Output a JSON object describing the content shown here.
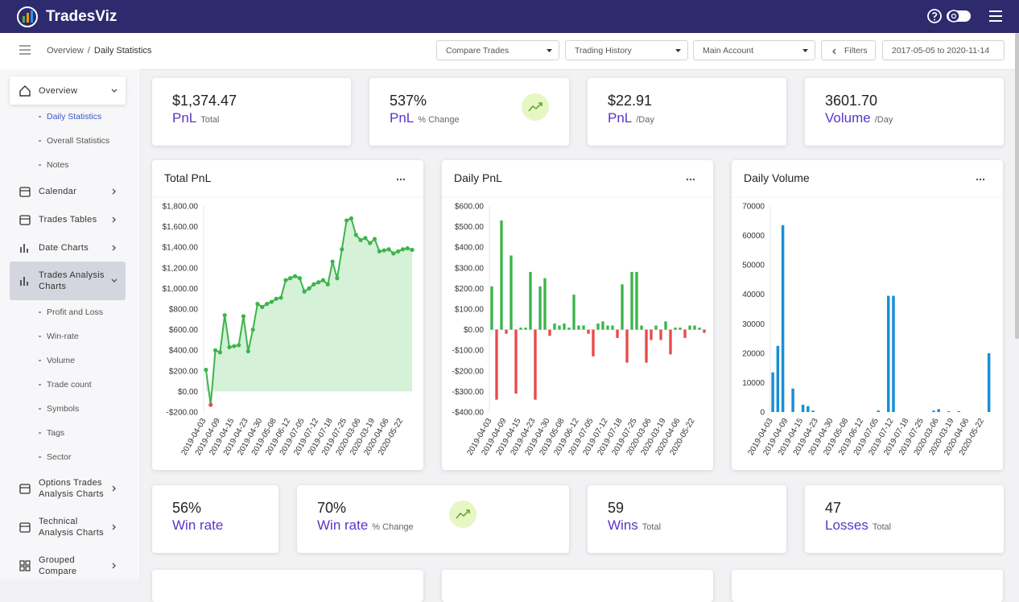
{
  "header": {
    "brand": "TradesViz"
  },
  "breadcrumb": {
    "items": [
      "Overview",
      "Daily Statistics"
    ],
    "separator": "/"
  },
  "toolbar": {
    "selects": [
      "Compare Trades",
      "Trading History",
      "Main Account"
    ],
    "filters": "Filters",
    "date_range": "2017-05-05 to 2020-11-14"
  },
  "sidebar": [
    {
      "label": "Overview",
      "children": [
        "Daily Statistics",
        "Overall Statistics",
        "Notes"
      ]
    },
    {
      "label": "Calendar"
    },
    {
      "label": "Trades Tables"
    },
    {
      "label": "Date Charts"
    },
    {
      "label": "Trades Analysis Charts",
      "children": [
        "Profit and Loss",
        "Win-rate",
        "Volume",
        "Trade count",
        "Symbols",
        "Tags",
        "Sector"
      ]
    },
    {
      "label": "Options Trades Analysis Charts"
    },
    {
      "label": "Technical Analysis Charts"
    },
    {
      "label": "Grouped Compare"
    }
  ],
  "stats_top": [
    {
      "value": "$1,374.47",
      "label": "PnL",
      "sub": "Total"
    },
    {
      "value": "537%",
      "label": "PnL",
      "sub": "% Change"
    },
    {
      "value": "$22.91",
      "label": "PnL",
      "sub": "/Day"
    },
    {
      "value": "3601.70",
      "label": "Volume",
      "sub": "/Day"
    }
  ],
  "stats_bottom": [
    {
      "value": "56%",
      "label": "Win rate"
    },
    {
      "value": "70%",
      "label": "Win rate",
      "sub": "% Change"
    },
    {
      "value": "59",
      "label": "Wins",
      "sub": "Total"
    },
    {
      "value": "47",
      "label": "Losses",
      "sub": "Total"
    }
  ],
  "chart_data": [
    {
      "type": "area",
      "title": "Total PnL",
      "color": "#3cb44b",
      "fill_color": "#d5f1d8",
      "negative_color": "#e84a4a",
      "categories": [
        "2019-04-03",
        null,
        null,
        "2019-04-09",
        null,
        null,
        "2019-04-15",
        null,
        null,
        "2019-04-23",
        null,
        null,
        "2019-04-30",
        null,
        null,
        "2019-05-08",
        null,
        null,
        "2019-06-12",
        null,
        null,
        "2019-07-05",
        null,
        null,
        "2019-07-12",
        null,
        null,
        "2019-07-18",
        null,
        null,
        "2019-07-25",
        null,
        null,
        "2020-03-06",
        null,
        null,
        "2020-03-19",
        null,
        null,
        "2020-04-06",
        null,
        null,
        "2020-05-22",
        null,
        null
      ],
      "values": [
        210,
        -130,
        400,
        380,
        740,
        430,
        440,
        450,
        730,
        390,
        600,
        850,
        820,
        850,
        870,
        900,
        910,
        1080,
        1100,
        1120,
        1100,
        970,
        1000,
        1040,
        1060,
        1080,
        1040,
        1260,
        1100,
        1380,
        1660,
        1680,
        1520,
        1470,
        1490,
        1440,
        1480,
        1360,
        1370,
        1380,
        1340,
        1360,
        1380,
        1390,
        1374.47
      ],
      "ylim": [
        -200,
        1800
      ],
      "yticks": [
        {
          "value": -200,
          "label": "-$200.00"
        },
        {
          "value": 0,
          "label": "$0.00"
        },
        {
          "value": 200,
          "label": "$200.00"
        },
        {
          "value": 400,
          "label": "$400.00"
        },
        {
          "value": 600,
          "label": "$600.00"
        },
        {
          "value": 800,
          "label": "$800.00"
        },
        {
          "value": 1000,
          "label": "$1,000.00"
        },
        {
          "value": 1200,
          "label": "$1,200.00"
        },
        {
          "value": 1400,
          "label": "$1,400.00"
        },
        {
          "value": 1600,
          "label": "$1,600.00"
        },
        {
          "value": 1800,
          "label": "$1,800.00"
        }
      ]
    },
    {
      "type": "bar",
      "title": "Daily PnL",
      "color": "#3cb44b",
      "negative_color": "#e84a4a",
      "categories": [
        "2019-04-03",
        null,
        null,
        "2019-04-09",
        null,
        null,
        "2019-04-15",
        null,
        null,
        "2019-04-23",
        null,
        null,
        "2019-04-30",
        null,
        null,
        "2019-05-08",
        null,
        null,
        "2019-06-12",
        null,
        null,
        "2019-07-05",
        null,
        null,
        "2019-07-12",
        null,
        null,
        "2019-07-18",
        null,
        null,
        "2019-07-25",
        null,
        null,
        "2020-03-06",
        null,
        null,
        "2020-03-19",
        null,
        null,
        "2020-04-06",
        null,
        null,
        "2020-05-22",
        null,
        null
      ],
      "values": [
        210,
        -340,
        530,
        -20,
        360,
        -310,
        10,
        10,
        280,
        -340,
        210,
        250,
        -30,
        30,
        20,
        30,
        10,
        170,
        20,
        20,
        -20,
        -130,
        30,
        40,
        20,
        20,
        -40,
        220,
        -160,
        280,
        280,
        20,
        -160,
        -50,
        20,
        -50,
        40,
        -120,
        10,
        10,
        -40,
        20,
        20,
        10,
        -15.53
      ],
      "ylim": [
        -400,
        600
      ],
      "yticks": [
        {
          "value": -400,
          "label": "-$400.00"
        },
        {
          "value": -300,
          "label": "-$300.00"
        },
        {
          "value": -200,
          "label": "-$200.00"
        },
        {
          "value": -100,
          "label": "-$100.00"
        },
        {
          "value": 0,
          "label": "$0.00"
        },
        {
          "value": 100,
          "label": "$100.00"
        },
        {
          "value": 200,
          "label": "$200.00"
        },
        {
          "value": 300,
          "label": "$300.00"
        },
        {
          "value": 400,
          "label": "$400.00"
        },
        {
          "value": 500,
          "label": "$500.00"
        },
        {
          "value": 600,
          "label": "$600.00"
        }
      ]
    },
    {
      "type": "bar",
      "title": "Daily Volume",
      "color": "#1a8fd6",
      "categories": [
        "2019-04-03",
        null,
        null,
        "2019-04-09",
        null,
        null,
        "2019-04-15",
        null,
        null,
        "2019-04-23",
        null,
        null,
        "2019-04-30",
        null,
        null,
        "2019-05-08",
        null,
        null,
        "2019-06-12",
        null,
        null,
        "2019-07-05",
        null,
        null,
        "2019-07-12",
        null,
        null,
        "2019-07-18",
        null,
        null,
        "2019-07-25",
        null,
        null,
        "2020-03-06",
        null,
        null,
        "2020-03-19",
        null,
        null,
        "2020-04-06",
        null,
        null,
        "2020-05-22",
        null,
        null
      ],
      "values": [
        13500,
        22500,
        63500,
        0,
        8000,
        0,
        2500,
        2000,
        500,
        0,
        0,
        0,
        0,
        0,
        0,
        0,
        0,
        0,
        0,
        0,
        0,
        500,
        0,
        39500,
        39500,
        0,
        0,
        0,
        0,
        0,
        0,
        0,
        500,
        1000,
        0,
        300,
        0,
        300,
        0,
        0,
        0,
        0,
        0,
        20000,
        0
      ],
      "ylim": [
        0,
        70000
      ],
      "yticks": [
        0,
        10000,
        20000,
        30000,
        40000,
        50000,
        60000,
        70000
      ]
    }
  ]
}
